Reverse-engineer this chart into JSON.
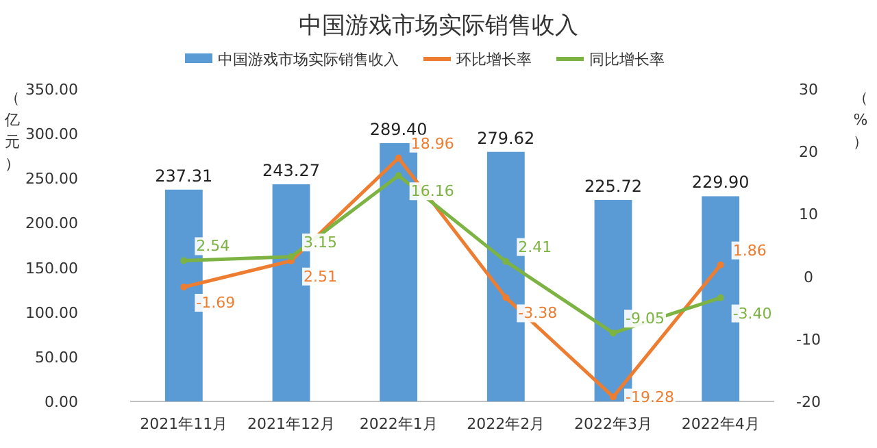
{
  "chart_data": {
    "type": "bar",
    "title": "中国游戏市场实际销售收入",
    "ylabel": "（亿元）",
    "y2label": "（%）",
    "categories": [
      "2021年11月",
      "2021年12月",
      "2022年1月",
      "2022年2月",
      "2022年3月",
      "2022年4月"
    ],
    "series": [
      {
        "name": "中国游戏市场实际销售收入",
        "color": "#5b9bd5",
        "values": [
          237.31,
          243.27,
          289.4,
          279.62,
          225.72,
          229.9
        ],
        "value_labels": [
          "237.31",
          "243.27",
          "289.40",
          "279.62",
          "225.72",
          "229.90"
        ]
      },
      {
        "name": "环比增长率",
        "type": "line",
        "axis": "y2",
        "color": "#ed7d31",
        "values": [
          -1.69,
          2.51,
          18.96,
          -3.38,
          -19.28,
          1.86
        ],
        "value_labels": [
          "-1.69",
          "2.51",
          "18.96",
          "-3.38",
          "-19.28",
          "1.86"
        ]
      },
      {
        "name": "同比增长率",
        "type": "line",
        "axis": "y2",
        "color": "#7cb342",
        "values": [
          2.54,
          3.15,
          16.16,
          2.41,
          -9.05,
          -3.4
        ],
        "value_labels": [
          "2.54",
          "3.15",
          "16.16",
          "2.41",
          "-9.05",
          "-3.40"
        ]
      }
    ],
    "ylim": [
      0,
      350
    ],
    "yticks": [
      {
        "value": 0,
        "label": "0.00"
      },
      {
        "value": 50,
        "label": "50.00"
      },
      {
        "value": 100,
        "label": "100.00"
      },
      {
        "value": 150,
        "label": "150.00"
      },
      {
        "value": 200,
        "label": "200.00"
      },
      {
        "value": 250,
        "label": "250.00"
      },
      {
        "value": 300,
        "label": "300.00"
      },
      {
        "value": 350,
        "label": "350.00"
      }
    ],
    "y2lim": [
      -20,
      30
    ],
    "y2ticks": [
      -20,
      -10,
      0,
      10,
      20,
      30
    ],
    "legend": "top",
    "marker": "circle",
    "grid": false
  }
}
